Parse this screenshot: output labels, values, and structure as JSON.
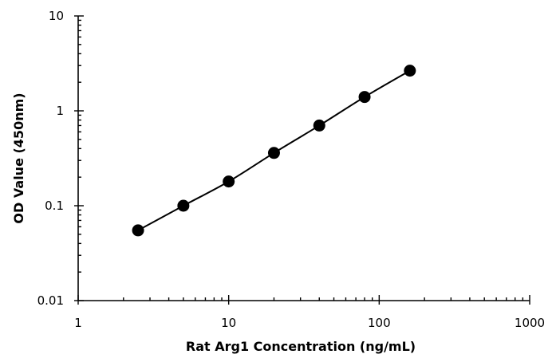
{
  "chart_data": {
    "type": "scatter",
    "xlabel": "Rat Arg1 Concentration  (ng/mL)",
    "ylabel": "OD Value (450nm)",
    "x_scale": "log",
    "y_scale": "log",
    "xlim": [
      1,
      1000
    ],
    "ylim": [
      0.01,
      10
    ],
    "x_ticks": [
      "1",
      "10",
      "100",
      "1000"
    ],
    "y_ticks": [
      "0.01",
      "0.1",
      "1",
      "10"
    ],
    "grid": false,
    "legend": "none",
    "series": [
      {
        "x": [
          2.5,
          5,
          10,
          20,
          40,
          80,
          160
        ],
        "y": [
          0.055,
          0.1,
          0.18,
          0.36,
          0.7,
          1.4,
          2.65
        ],
        "color": "#000000",
        "line": "smooth"
      }
    ]
  }
}
